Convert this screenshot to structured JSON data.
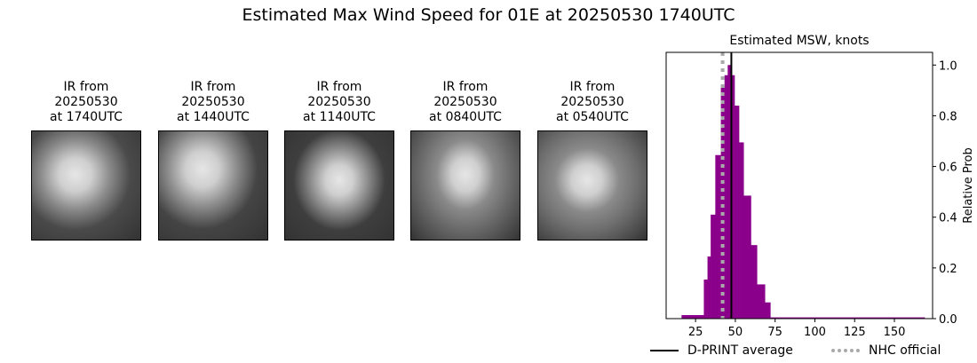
{
  "title": "Estimated Max Wind Speed for 01E at 20250530 1740UTC",
  "panels": [
    {
      "line1": "IR from",
      "line2": "20250530",
      "line3": "at 1740UTC",
      "tone": "#4a4a4a"
    },
    {
      "line1": "IR from",
      "line2": "20250530",
      "line3": "at 1440UTC",
      "tone": "#444444"
    },
    {
      "line1": "IR from",
      "line2": "20250530",
      "line3": "at 1140UTC",
      "tone": "#3e3e3e"
    },
    {
      "line1": "IR from",
      "line2": "20250530",
      "line3": "at 0840UTC",
      "tone": "#6a6a6a"
    },
    {
      "line1": "IR from",
      "line2": "20250530",
      "line3": "at 0540UTC",
      "tone": "#6e6e6e"
    }
  ],
  "chart_data": {
    "type": "bar",
    "title": "Estimated MSW, knots",
    "xlabel": "",
    "ylabel": "Relative Prob",
    "xlim": [
      6.5,
      174
    ],
    "ylim": [
      0,
      1.05
    ],
    "xticks": [
      25,
      50,
      75,
      100,
      125,
      150
    ],
    "yticks": [
      "0.0",
      "0.2",
      "0.4",
      "0.6",
      "0.8",
      "1.0"
    ],
    "bar_color": "#8b008b",
    "bins": [
      {
        "x0": 16.2,
        "x1": 30.2,
        "value": 0.014
      },
      {
        "x0": 30.2,
        "x1": 32.5,
        "value": 0.154
      },
      {
        "x0": 32.5,
        "x1": 34.5,
        "value": 0.245
      },
      {
        "x0": 34.5,
        "x1": 37.4,
        "value": 0.41
      },
      {
        "x0": 37.4,
        "x1": 40.9,
        "value": 0.645
      },
      {
        "x0": 40.9,
        "x1": 43.2,
        "value": 0.91
      },
      {
        "x0": 43.2,
        "x1": 45.2,
        "value": 0.96
      },
      {
        "x0": 45.2,
        "x1": 47.1,
        "value": 1.0
      },
      {
        "x0": 47.1,
        "x1": 49.5,
        "value": 0.96
      },
      {
        "x0": 49.5,
        "x1": 52.3,
        "value": 0.84
      },
      {
        "x0": 52.3,
        "x1": 55.2,
        "value": 0.695
      },
      {
        "x0": 55.2,
        "x1": 59.8,
        "value": 0.485
      },
      {
        "x0": 59.8,
        "x1": 63.6,
        "value": 0.29
      },
      {
        "x0": 63.6,
        "x1": 68.6,
        "value": 0.135
      },
      {
        "x0": 68.6,
        "x1": 72.0,
        "value": 0.064
      },
      {
        "x0": 72.0,
        "x1": 169.0,
        "value": 0.005
      }
    ],
    "dprint_average": 47.5,
    "nhc_official": 42,
    "legend": [
      {
        "label": "D-PRINT average",
        "color": "#000000",
        "style": "solid"
      },
      {
        "label": "NHC official",
        "color": "#a9a9a9",
        "style": "dotted"
      }
    ],
    "legend_placement": "bottom",
    "grid": false
  }
}
